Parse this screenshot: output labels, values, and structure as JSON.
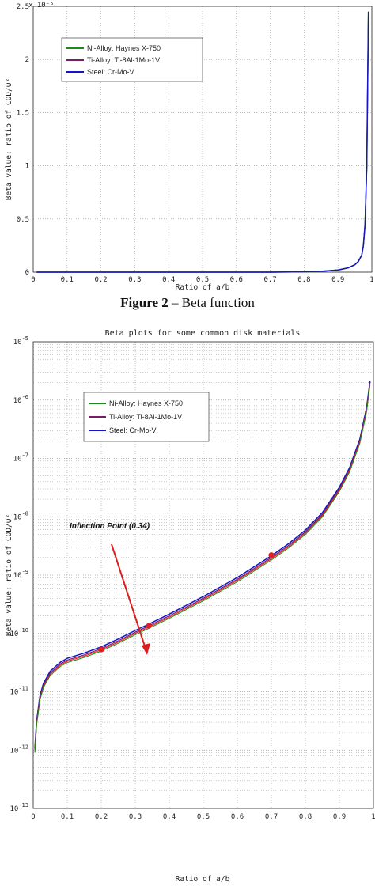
{
  "caption": {
    "label": "Figure 2",
    "text": " – Beta function"
  },
  "colors": {
    "ni": "#1a8a1a",
    "ti": "#7a1a6a",
    "steel": "#1515c8",
    "redline": "#e02020",
    "marker": "#e02020",
    "grid": "#9a9a9a",
    "arrow": "#d81e1e"
  },
  "chart_data": [
    {
      "type": "line",
      "title": "",
      "xlabel": "Ratio of a/b",
      "ylabel": "Beta value: ratio of COD/ψ²",
      "exponent_label": "x 10⁻⁵",
      "xlim": [
        0,
        1
      ],
      "ylim": [
        0,
        2.5
      ],
      "x_ticks": [
        "0",
        "0.1",
        "0.2",
        "0.3",
        "0.4",
        "0.5",
        "0.6",
        "0.7",
        "0.8",
        "0.9",
        "1"
      ],
      "y_ticks": [
        "0",
        "0.5",
        "1",
        "1.5",
        "2",
        "2.5"
      ],
      "grid": true,
      "legend_position": "top-left",
      "series": [
        {
          "name": "Ni-Alloy: Haynes X-750",
          "color": "#1a8a1a"
        },
        {
          "name": "Ti-Alloy: Ti-8Al-1Mo-1V",
          "color": "#7a1a6a"
        },
        {
          "name": "Steel: Cr-Mo-V",
          "color": "#1515c8"
        }
      ],
      "x": [
        0.01,
        0.1,
        0.2,
        0.3,
        0.4,
        0.5,
        0.6,
        0.7,
        0.8,
        0.85,
        0.9,
        0.93,
        0.95,
        0.96,
        0.97,
        0.975,
        0.98,
        0.985,
        0.99
      ],
      "values": [
        0,
        0,
        0,
        0,
        0,
        0,
        0,
        0.0002,
        0.003,
        0.008,
        0.02,
        0.04,
        0.07,
        0.1,
        0.16,
        0.25,
        0.45,
        1.0,
        2.45
      ]
    },
    {
      "type": "line",
      "title": "Beta plots for some common disk materials",
      "xlabel": "Ratio of a/b",
      "ylabel": "Beta value: ratio of COD/ψ²",
      "xlim": [
        0,
        1
      ],
      "ylim": [
        1e-13,
        1e-05
      ],
      "y_scale": "log",
      "x_ticks": [
        "0",
        "0.1",
        "0.2",
        "0.3",
        "0.4",
        "0.5",
        "0.6",
        "0.7",
        "0.8",
        "0.9",
        "1"
      ],
      "y_ticks": [
        {
          "base": "10",
          "exp": "-13",
          "decade": -13
        },
        {
          "base": "10",
          "exp": "-12",
          "decade": -12
        },
        {
          "base": "10",
          "exp": "-11",
          "decade": -11
        },
        {
          "base": "10",
          "exp": "-10",
          "decade": -10
        },
        {
          "base": "10",
          "exp": "-9",
          "decade": -9
        },
        {
          "base": "10",
          "exp": "-8",
          "decade": -8
        },
        {
          "base": "10",
          "exp": "-7",
          "decade": -7
        },
        {
          "base": "10",
          "exp": "-6",
          "decade": -6
        },
        {
          "base": "10",
          "exp": "-5",
          "decade": -5
        }
      ],
      "grid": true,
      "legend_position": "top-left",
      "series": [
        {
          "name": "Ni-Alloy: Haynes X-750",
          "color": "#1a8a1a"
        },
        {
          "name": "Ti-Alloy: Ti-8Al-1Mo-1V",
          "color": "#7a1a6a"
        },
        {
          "name": "Steel: Cr-Mo-V",
          "color": "#1515c8"
        }
      ],
      "x": [
        0.005,
        0.01,
        0.02,
        0.03,
        0.05,
        0.08,
        0.1,
        0.15,
        0.2,
        0.25,
        0.3,
        0.34,
        0.4,
        0.5,
        0.6,
        0.7,
        0.75,
        0.8,
        0.85,
        0.9,
        0.93,
        0.96,
        0.98,
        0.99
      ],
      "values": [
        1e-12,
        3e-12,
        8e-12,
        1.3e-11,
        2.1e-11,
        3e-11,
        3.5e-11,
        4.3e-11,
        5.5e-11,
        7.5e-11,
        1.05e-10,
        1.35e-10,
        2e-10,
        4e-10,
        8.5e-10,
        2e-09,
        3.2e-09,
        5.5e-09,
        1.1e-08,
        3e-08,
        6.5e-08,
        2e-07,
        7e-07,
        2e-06
      ],
      "markers": [
        {
          "x": 0.2,
          "y": 5.3e-11
        },
        {
          "x": 0.34,
          "y": 1.35e-10
        },
        {
          "x": 0.7,
          "y": 2.2e-09
        }
      ],
      "annotation": {
        "text": "Inflection Point (0.34)",
        "x": 0.34,
        "y": 1.35e-10
      }
    }
  ]
}
